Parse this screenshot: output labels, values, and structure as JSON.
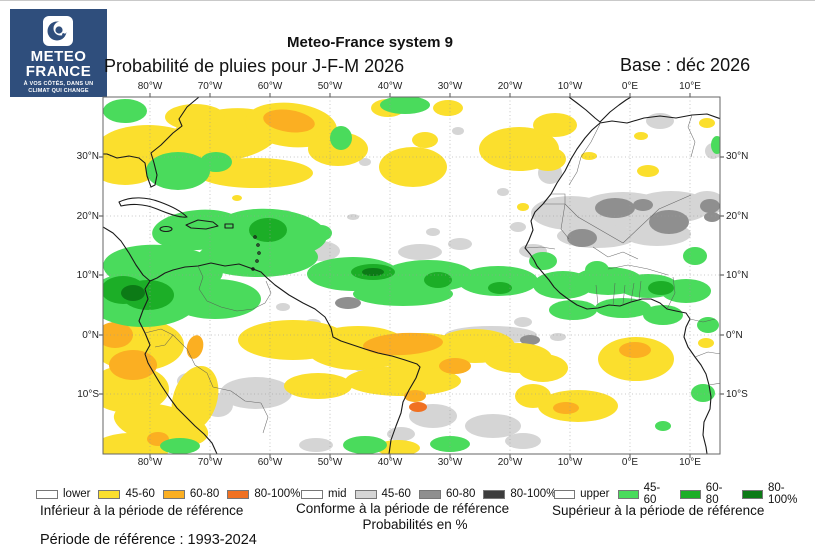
{
  "logo": {
    "brand_line1": "METEO",
    "brand_line2": "FRANCE",
    "tagline_line1": "À VOS CÔTÉS, DANS UN",
    "tagline_line2": "CLIMAT QUI CHANGE"
  },
  "header": {
    "title": "Meteo-France system 9",
    "subtitle": "Probabilité de pluies pour J-F-M 2026",
    "base_label": "Base : déc 2026"
  },
  "map": {
    "lon_labels": [
      "80°W",
      "70°W",
      "60°W",
      "50°W",
      "40°W",
      "30°W",
      "20°W",
      "10°W",
      "0°E",
      "10°E"
    ],
    "lat_labels": [
      "30°N",
      "20°N",
      "10°N",
      "0°N",
      "10°S"
    ]
  },
  "legend": {
    "groups": [
      {
        "name": "lower",
        "caption": "Inférieur à la période de référence",
        "entries": [
          {
            "label": "lower",
            "color": "#FFFFFF"
          },
          {
            "label": "45-60",
            "color": "#FBDF2D"
          },
          {
            "label": "60-80",
            "color": "#FBAF22"
          },
          {
            "label": "80-100%",
            "color": "#F07122"
          }
        ]
      },
      {
        "name": "mid",
        "caption": "Conforme à la période de référence",
        "units_note": "Probabilités en %",
        "entries": [
          {
            "label": "mid",
            "color": "#FFFFFF"
          },
          {
            "label": "45-60",
            "color": "#D5D5D5"
          },
          {
            "label": "60-80",
            "color": "#8F8F8F"
          },
          {
            "label": "80-100%",
            "color": "#3C3C3C"
          }
        ]
      },
      {
        "name": "upper",
        "caption": "Supérieur à la période de référence",
        "entries": [
          {
            "label": "upper",
            "color": "#FFFFFF"
          },
          {
            "label": "45-60",
            "color": "#4ADB5C"
          },
          {
            "label": "60-80",
            "color": "#1CAE27"
          },
          {
            "label": "80-100%",
            "color": "#0C7A16"
          }
        ]
      }
    ]
  },
  "footer": {
    "reference_period": "Période de référence : 1993-2024"
  },
  "colors": {
    "logo_blue": "#2F4E7C",
    "below_45_60": "#FBDF2D",
    "below_60_80": "#FBAF22",
    "below_80_100": "#F07122",
    "normal_45_60": "#D5D5D5",
    "normal_60_80": "#8F8F8F",
    "normal_80_100": "#3C3C3C",
    "above_45_60": "#4ADB5C",
    "above_60_80": "#1CAE27",
    "above_80_100": "#0C7A16",
    "coastline": "#1A1A1A",
    "border_line": "#555555",
    "grid_line": "#9A9A9A"
  }
}
